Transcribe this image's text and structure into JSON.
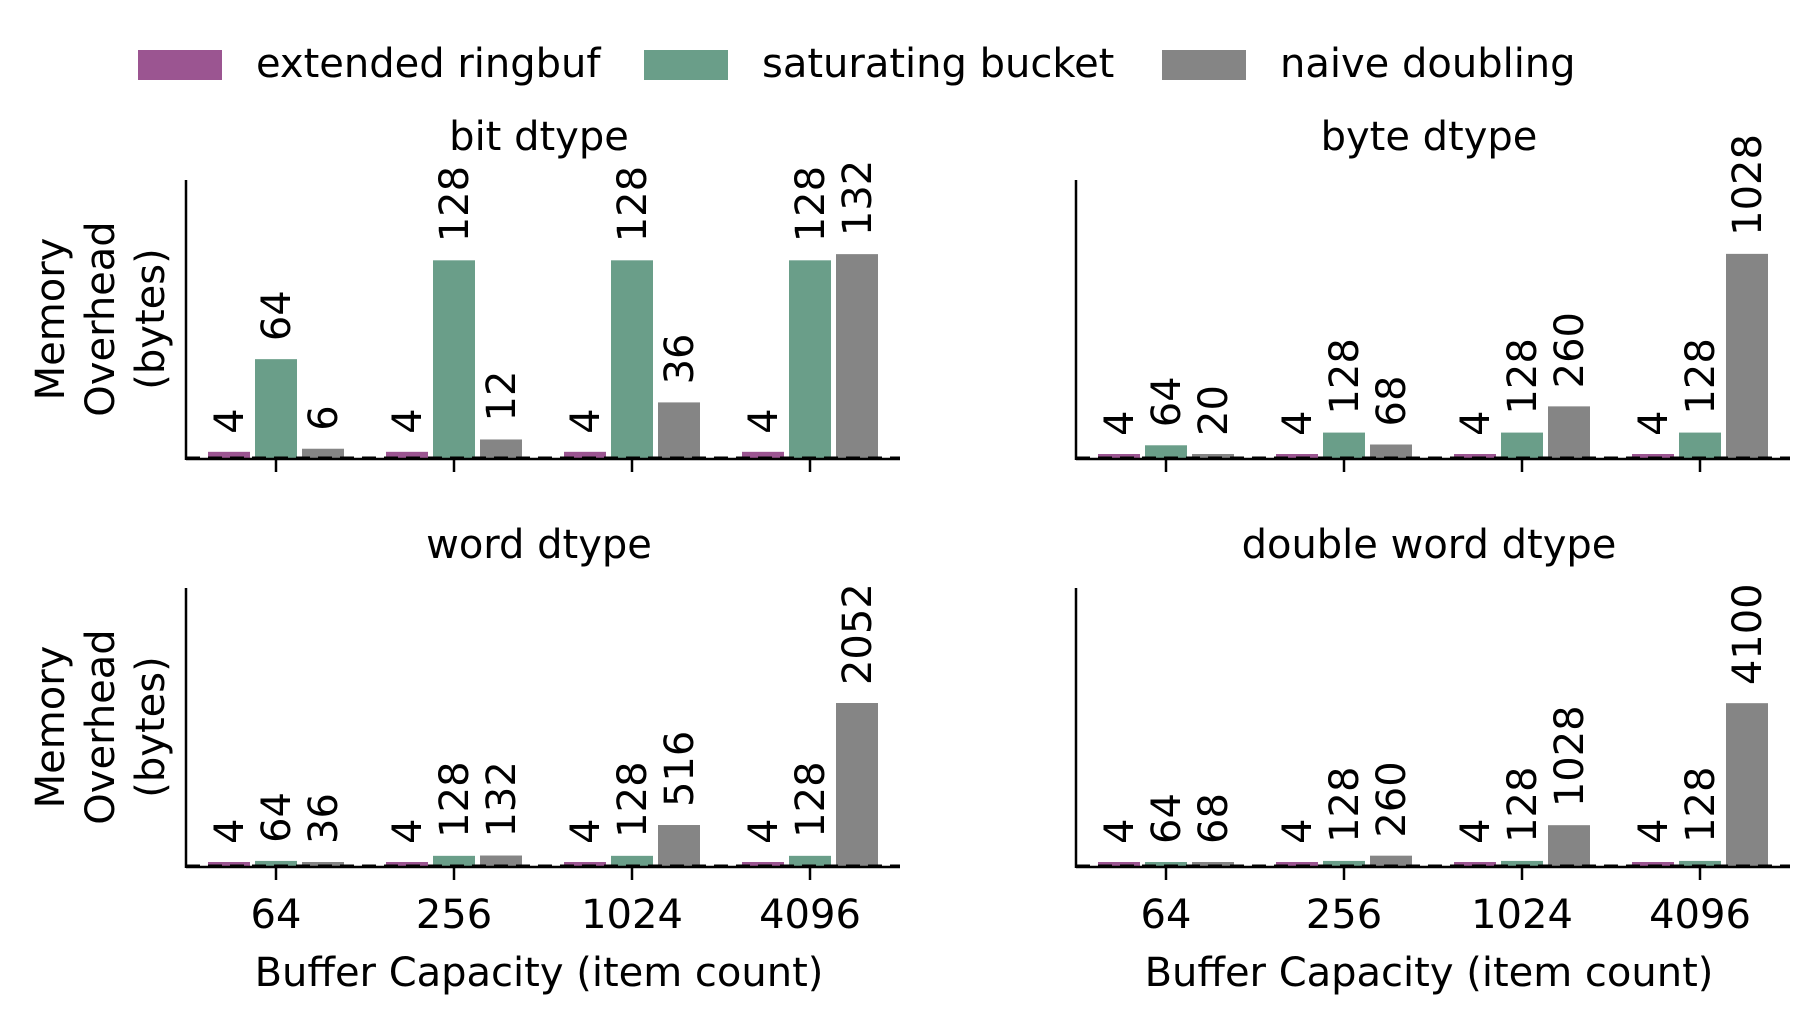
{
  "colors": {
    "extended ringbuf": "#9b5591",
    "saturating bucket": "#6a9e89",
    "naive doubling": "#858585"
  },
  "legend": {
    "placement": "top-center",
    "items": [
      "extended ringbuf",
      "saturating bucket",
      "naive doubling"
    ]
  },
  "chart_data": [
    {
      "type": "bar",
      "title": "bit dtype",
      "ylabel": "Memory\nOverhead\n(bytes)",
      "xlabel": "",
      "categories": [
        "64",
        "256",
        "1024",
        "4096"
      ],
      "ylim": [
        0,
        180
      ],
      "grid": false,
      "series": [
        {
          "name": "extended ringbuf",
          "values": [
            4,
            4,
            4,
            4
          ]
        },
        {
          "name": "saturating bucket",
          "values": [
            64,
            128,
            128,
            128
          ]
        },
        {
          "name": "naive doubling",
          "values": [
            6,
            12,
            36,
            132
          ]
        }
      ]
    },
    {
      "type": "bar",
      "title": "byte dtype",
      "ylabel": "",
      "xlabel": "",
      "categories": [
        "64",
        "256",
        "1024",
        "4096"
      ],
      "ylim": [
        0,
        1400
      ],
      "grid": false,
      "series": [
        {
          "name": "extended ringbuf",
          "values": [
            4,
            4,
            4,
            4
          ]
        },
        {
          "name": "saturating bucket",
          "values": [
            64,
            128,
            128,
            128
          ]
        },
        {
          "name": "naive doubling",
          "values": [
            20,
            68,
            260,
            1028
          ]
        }
      ]
    },
    {
      "type": "bar",
      "title": "word dtype",
      "ylabel": "Memory\nOverhead\n(bytes)",
      "xlabel": "Buffer Capacity (item count)",
      "categories": [
        "64",
        "256",
        "1024",
        "4096"
      ],
      "ylim": [
        0,
        3500
      ],
      "grid": false,
      "series": [
        {
          "name": "extended ringbuf",
          "values": [
            4,
            4,
            4,
            4
          ]
        },
        {
          "name": "saturating bucket",
          "values": [
            64,
            128,
            128,
            128
          ]
        },
        {
          "name": "naive doubling",
          "values": [
            36,
            132,
            516,
            2052
          ]
        }
      ]
    },
    {
      "type": "bar",
      "title": "double word dtype",
      "ylabel": "",
      "xlabel": "Buffer Capacity (item count)",
      "categories": [
        "64",
        "256",
        "1024",
        "4096"
      ],
      "ylim": [
        0,
        7000
      ],
      "grid": false,
      "series": [
        {
          "name": "extended ringbuf",
          "values": [
            4,
            4,
            4,
            4
          ]
        },
        {
          "name": "saturating bucket",
          "values": [
            64,
            128,
            128,
            128
          ]
        },
        {
          "name": "naive doubling",
          "values": [
            68,
            260,
            1028,
            4100
          ]
        }
      ]
    }
  ]
}
